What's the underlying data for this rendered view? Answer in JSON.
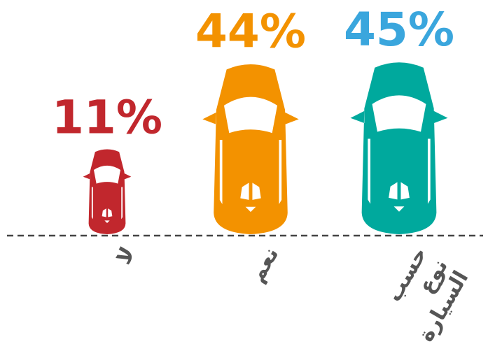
{
  "chart_data": {
    "type": "pictogram",
    "categories": [
      "لا",
      "نعم",
      "حسب نوع السيارة"
    ],
    "values": [
      11,
      44,
      45
    ],
    "value_labels": [
      "11%",
      "44%",
      "45%"
    ],
    "colors": [
      "#c1272d",
      "#f39200",
      "#00a99d"
    ],
    "label_colors": [
      "#c1272d",
      "#f39200",
      "#3aa6dd"
    ]
  }
}
